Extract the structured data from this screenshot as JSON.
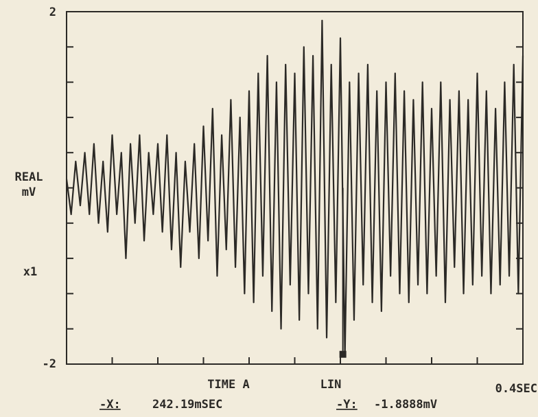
{
  "chart_data": {
    "type": "line",
    "y_label_lines": [
      "REAL",
      "mV"
    ],
    "scale_label": "x1",
    "x_label": "TIME A",
    "x_scale": "LIN",
    "x_span_label": "0.4SEC",
    "marker": {
      "x_key": "-X:",
      "x": 0.24219,
      "x_label": "242.19mSEC",
      "y_key": "-Y:",
      "y": -1.8888,
      "y_label": "-1.8888mV"
    },
    "color": "#2b2926",
    "xlim": [
      0,
      0.4
    ],
    "ylim": [
      -2,
      2
    ],
    "xticks": [
      0,
      0.04,
      0.08,
      0.12,
      0.16,
      0.2,
      0.24,
      0.28,
      0.32,
      0.36,
      0.4
    ],
    "yticks": [
      -2,
      -1.6,
      -1.2,
      -0.8,
      -0.4,
      0,
      0.4,
      0.8,
      1.2,
      1.6,
      2
    ],
    "x": [
      0,
      0.004,
      0.008,
      0.012,
      0.016,
      0.02,
      0.024,
      0.028,
      0.032,
      0.036,
      0.04,
      0.044,
      0.048,
      0.052,
      0.056,
      0.06,
      0.064,
      0.068,
      0.072,
      0.076,
      0.08,
      0.084,
      0.088,
      0.092,
      0.096,
      0.1,
      0.104,
      0.108,
      0.112,
      0.116,
      0.12,
      0.124,
      0.128,
      0.132,
      0.136,
      0.14,
      0.144,
      0.148,
      0.152,
      0.156,
      0.16,
      0.164,
      0.168,
      0.172,
      0.176,
      0.18,
      0.184,
      0.188,
      0.192,
      0.196,
      0.2,
      0.204,
      0.208,
      0.212,
      0.216,
      0.22,
      0.224,
      0.228,
      0.232,
      0.236,
      0.24,
      0.244,
      0.248,
      0.252,
      0.256,
      0.26,
      0.264,
      0.268,
      0.272,
      0.276,
      0.28,
      0.284,
      0.288,
      0.292,
      0.296,
      0.3,
      0.304,
      0.308,
      0.312,
      0.316,
      0.32,
      0.324,
      0.328,
      0.332,
      0.336,
      0.34,
      0.344,
      0.348,
      0.352,
      0.356,
      0.36,
      0.364,
      0.368,
      0.372,
      0.376,
      0.38,
      0.384,
      0.388,
      0.392,
      0.396,
      0.4
    ],
    "values": [
      0.1,
      -0.3,
      0.3,
      -0.2,
      0.4,
      -0.3,
      0.5,
      -0.4,
      0.3,
      -0.5,
      0.6,
      -0.3,
      0.4,
      -0.8,
      0.5,
      -0.4,
      0.6,
      -0.6,
      0.4,
      -0.3,
      0.5,
      -0.5,
      0.6,
      -0.7,
      0.4,
      -0.9,
      0.3,
      -0.5,
      0.5,
      -0.8,
      0.7,
      -0.6,
      0.9,
      -1.0,
      0.6,
      -0.7,
      1.0,
      -0.9,
      0.8,
      -1.2,
      1.1,
      -1.3,
      1.3,
      -1.0,
      1.5,
      -1.4,
      1.2,
      -1.6,
      1.4,
      -1.1,
      1.3,
      -1.5,
      1.6,
      -1.2,
      1.5,
      -1.6,
      1.9,
      -1.7,
      1.4,
      -1.3,
      1.7,
      -1.9,
      1.2,
      -1.5,
      1.3,
      -1.1,
      1.4,
      -1.3,
      1.1,
      -1.4,
      1.2,
      -1.0,
      1.3,
      -1.2,
      1.1,
      -1.3,
      1.0,
      -1.1,
      1.2,
      -1.2,
      0.9,
      -1.0,
      1.2,
      -1.3,
      1.0,
      -0.9,
      1.1,
      -1.2,
      1.0,
      -1.1,
      1.3,
      -1.0,
      1.1,
      -1.2,
      0.9,
      -1.1,
      1.2,
      -1.0,
      1.4,
      -1.2,
      1.5
    ]
  }
}
